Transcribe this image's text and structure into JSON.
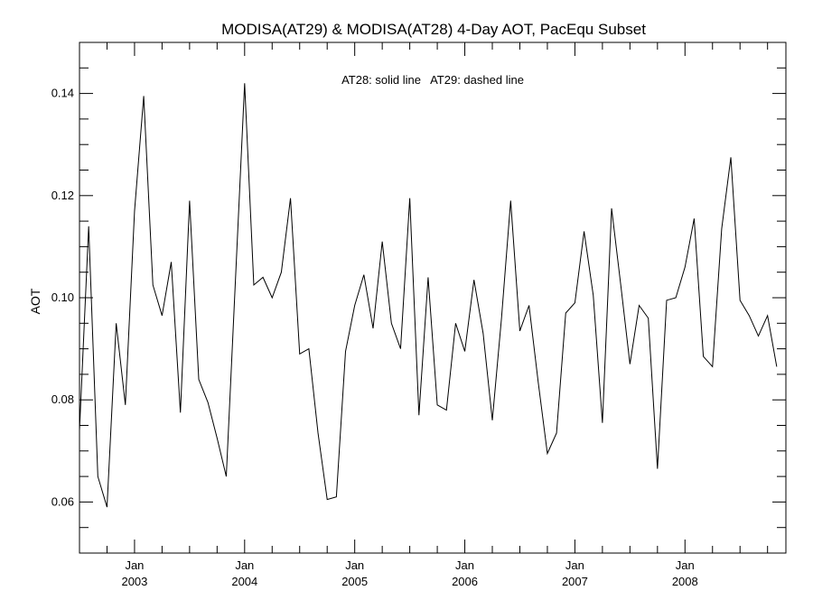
{
  "chart_data": {
    "type": "line",
    "title": "MODISA(AT29) & MODISA(AT28) 4-Day AOT, PacEqu Subset",
    "annotation": "AT28: solid line   AT29: dashed line",
    "xlabel": "",
    "ylabel": "AOT",
    "x_range": [
      "2002-07",
      "2008-12"
    ],
    "ylim": [
      0.05,
      0.15
    ],
    "y_ticks": [
      0.06,
      0.08,
      0.1,
      0.12,
      0.14
    ],
    "y_tick_labels": [
      "0.06",
      "0.08",
      "0.10",
      "0.12",
      "0.14"
    ],
    "x_ticks": [
      {
        "month": "Jan",
        "year": "2003",
        "date": "2003-01"
      },
      {
        "month": "Jan",
        "year": "2004",
        "date": "2004-01"
      },
      {
        "month": "Jan",
        "year": "2005",
        "date": "2005-01"
      },
      {
        "month": "Jan",
        "year": "2006",
        "date": "2006-01"
      },
      {
        "month": "Jan",
        "year": "2007",
        "date": "2007-01"
      },
      {
        "month": "Jan",
        "year": "2008",
        "date": "2008-01"
      }
    ],
    "grid": false,
    "series": [
      {
        "style": "solid",
        "color": "#000000",
        "points": [
          [
            "2002-07",
            0.074
          ],
          [
            "2002-08",
            0.114
          ],
          [
            "2002-09",
            0.065
          ],
          [
            "2002-10",
            0.059
          ],
          [
            "2002-11",
            0.095
          ],
          [
            "2002-12",
            0.079
          ],
          [
            "2003-01",
            0.117
          ],
          [
            "2003-02",
            0.1395
          ],
          [
            "2003-03",
            0.1025
          ],
          [
            "2003-04",
            0.0965
          ],
          [
            "2003-05",
            0.107
          ],
          [
            "2003-06",
            0.0775
          ],
          [
            "2003-07",
            0.119
          ],
          [
            "2003-08",
            0.084
          ],
          [
            "2003-09",
            0.0795
          ],
          [
            "2003-10",
            0.0725
          ],
          [
            "2003-11",
            0.065
          ],
          [
            "2004-01",
            0.142
          ],
          [
            "2004-02",
            0.1025
          ],
          [
            "2004-03",
            0.104
          ],
          [
            "2004-04",
            0.1
          ],
          [
            "2004-05",
            0.105
          ],
          [
            "2004-06",
            0.1195
          ],
          [
            "2004-07",
            0.089
          ],
          [
            "2004-08",
            0.09
          ],
          [
            "2004-09",
            0.0735
          ],
          [
            "2004-10",
            0.0605
          ],
          [
            "2004-11",
            0.061
          ],
          [
            "2004-12",
            0.0895
          ],
          [
            "2005-01",
            0.0985
          ],
          [
            "2005-02",
            0.1045
          ],
          [
            "2005-03",
            0.094
          ],
          [
            "2005-04",
            0.111
          ],
          [
            "2005-05",
            0.095
          ],
          [
            "2005-06",
            0.09
          ],
          [
            "2005-07",
            0.1195
          ],
          [
            "2005-08",
            0.077
          ],
          [
            "2005-09",
            0.104
          ],
          [
            "2005-10",
            0.079
          ],
          [
            "2005-11",
            0.078
          ],
          [
            "2005-12",
            0.095
          ],
          [
            "2006-01",
            0.0895
          ],
          [
            "2006-02",
            0.1035
          ],
          [
            "2006-03",
            0.093
          ],
          [
            "2006-04",
            0.076
          ],
          [
            "2006-05",
            0.096
          ],
          [
            "2006-06",
            0.119
          ],
          [
            "2006-07",
            0.0935
          ],
          [
            "2006-08",
            0.0985
          ],
          [
            "2006-09",
            0.0835
          ],
          [
            "2006-10",
            0.0695
          ],
          [
            "2006-11",
            0.0735
          ],
          [
            "2006-12",
            0.097
          ],
          [
            "2007-01",
            0.099
          ],
          [
            "2007-02",
            0.113
          ],
          [
            "2007-03",
            0.1005
          ],
          [
            "2007-04",
            0.0755
          ],
          [
            "2007-05",
            0.1175
          ],
          [
            "2007-06",
            0.1025
          ],
          [
            "2007-07",
            0.087
          ],
          [
            "2007-08",
            0.0985
          ],
          [
            "2007-09",
            0.096
          ],
          [
            "2007-10",
            0.0665
          ],
          [
            "2007-11",
            0.0995
          ],
          [
            "2007-12",
            0.1
          ],
          [
            "2008-01",
            0.106
          ],
          [
            "2008-02",
            0.1155
          ],
          [
            "2008-03",
            0.0885
          ],
          [
            "2008-04",
            0.0865
          ],
          [
            "2008-05",
            0.1135
          ],
          [
            "2008-06",
            0.1275
          ],
          [
            "2008-07",
            0.0995
          ],
          [
            "2008-08",
            0.0965
          ],
          [
            "2008-09",
            0.0925
          ],
          [
            "2008-10",
            0.0965
          ],
          [
            "2008-11",
            0.0865
          ]
        ]
      }
    ]
  }
}
